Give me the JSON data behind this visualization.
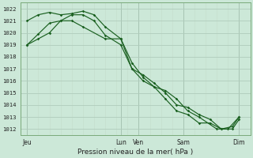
{
  "title": "Pression niveau de la mer( hPa )",
  "ylabel_values": [
    1012,
    1013,
    1014,
    1015,
    1016,
    1017,
    1018,
    1019,
    1020,
    1021,
    1022
  ],
  "ylim": [
    1011.5,
    1022.5
  ],
  "bg_color": "#cce8d8",
  "grid_color_major": "#b0ccbc",
  "grid_color_minor": "#c4dccb",
  "line_color": "#1a6020",
  "x_ticks_labels": [
    "Jeu",
    "Lun",
    "Ven",
    "Sam",
    "Dim"
  ],
  "x_ticks_pos": [
    0.0,
    4.2,
    5.0,
    7.0,
    9.5
  ],
  "xlim": [
    -0.3,
    10.0
  ],
  "line1_x": [
    0.0,
    0.5,
    1.0,
    1.5,
    2.0,
    2.5,
    3.5,
    4.2,
    4.7,
    5.2,
    5.7,
    6.2,
    6.7,
    7.2,
    7.7,
    8.5,
    9.0,
    9.5
  ],
  "line1_y": [
    1019.0,
    1019.9,
    1020.8,
    1021.0,
    1021.0,
    1020.5,
    1019.5,
    1019.5,
    1017.5,
    1016.3,
    1015.5,
    1015.2,
    1014.5,
    1013.5,
    1013.0,
    1012.0,
    1012.0,
    1013.0
  ],
  "line2_x": [
    0.0,
    0.5,
    1.0,
    1.5,
    2.0,
    2.5,
    3.0,
    3.5,
    4.2,
    4.7,
    5.2,
    5.7,
    6.2,
    6.7,
    7.2,
    7.7,
    8.2,
    8.7,
    9.2,
    9.5
  ],
  "line2_y": [
    1021.0,
    1021.5,
    1021.7,
    1021.5,
    1021.6,
    1021.8,
    1021.5,
    1020.5,
    1019.5,
    1017.0,
    1016.5,
    1015.8,
    1015.0,
    1014.0,
    1013.8,
    1013.2,
    1012.8,
    1012.0,
    1012.0,
    1012.8
  ],
  "line3_x": [
    0.0,
    0.5,
    1.0,
    1.5,
    2.0,
    2.5,
    3.0,
    3.5,
    4.2,
    4.7,
    5.2,
    5.7,
    6.2,
    6.7,
    7.2,
    7.7,
    8.2,
    8.7,
    9.2,
    9.5
  ],
  "line3_y": [
    1019.0,
    1019.5,
    1020.0,
    1021.0,
    1021.5,
    1021.5,
    1021.0,
    1019.8,
    1019.0,
    1017.0,
    1016.0,
    1015.5,
    1014.5,
    1013.5,
    1013.2,
    1012.5,
    1012.5,
    1012.0,
    1012.2,
    1013.0
  ]
}
